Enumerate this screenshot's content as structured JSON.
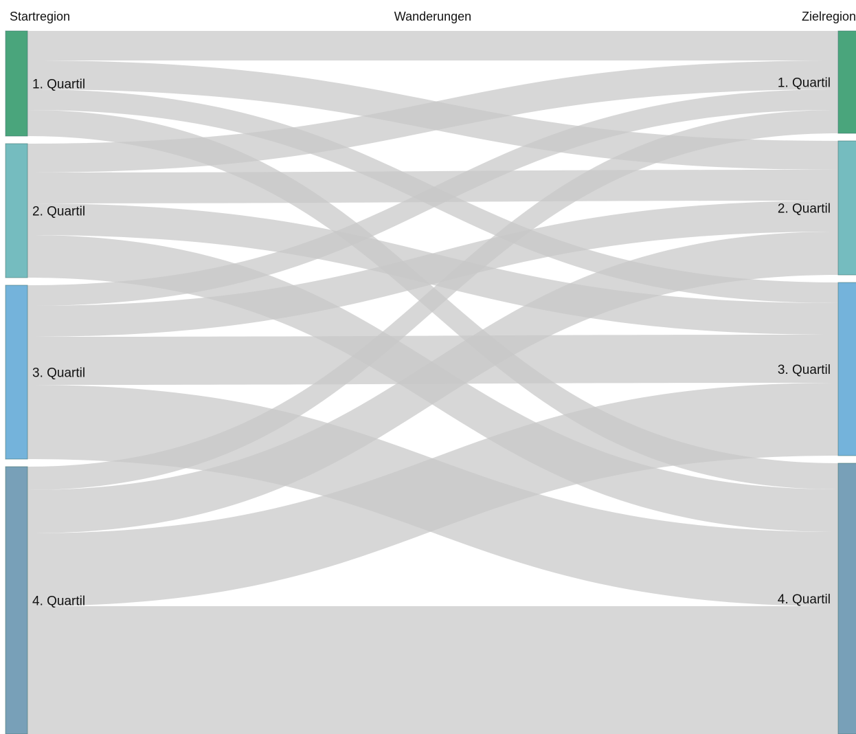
{
  "chart_data": {
    "type": "sankey",
    "headers": {
      "left": "Startregion",
      "middle": "Wanderungen",
      "right": "Zielregion"
    },
    "nodes": [
      {
        "name": "1. Quartil",
        "color": "#4aa57c"
      },
      {
        "name": "2. Quartil",
        "color": "#75bcbf"
      },
      {
        "name": "3. Quartil",
        "color": "#74b3db"
      },
      {
        "name": "4. Quartil",
        "color": "#78a0b8"
      }
    ],
    "link_color": "#c8c8c8",
    "links": [
      {
        "source": "1. Quartil",
        "target": "1. Quartil",
        "value": 43
      },
      {
        "source": "1. Quartil",
        "target": "2. Quartil",
        "value": 42
      },
      {
        "source": "1. Quartil",
        "target": "3. Quartil",
        "value": 30
      },
      {
        "source": "1. Quartil",
        "target": "4. Quartil",
        "value": 38
      },
      {
        "source": "2. Quartil",
        "target": "1. Quartil",
        "value": 42
      },
      {
        "source": "2. Quartil",
        "target": "2. Quartil",
        "value": 45
      },
      {
        "source": "2. Quartil",
        "target": "3. Quartil",
        "value": 46
      },
      {
        "source": "2. Quartil",
        "target": "4. Quartil",
        "value": 62
      },
      {
        "source": "3. Quartil",
        "target": "1. Quartil",
        "value": 30
      },
      {
        "source": "3. Quartil",
        "target": "2. Quartil",
        "value": 45
      },
      {
        "source": "3. Quartil",
        "target": "3. Quartil",
        "value": 70
      },
      {
        "source": "3. Quartil",
        "target": "4. Quartil",
        "value": 108
      },
      {
        "source": "4. Quartil",
        "target": "1. Quartil",
        "value": 34
      },
      {
        "source": "4. Quartil",
        "target": "2. Quartil",
        "value": 63
      },
      {
        "source": "4. Quartil",
        "target": "3. Quartil",
        "value": 106
      },
      {
        "source": "4. Quartil",
        "target": "4. Quartil",
        "value": 186
      }
    ]
  }
}
